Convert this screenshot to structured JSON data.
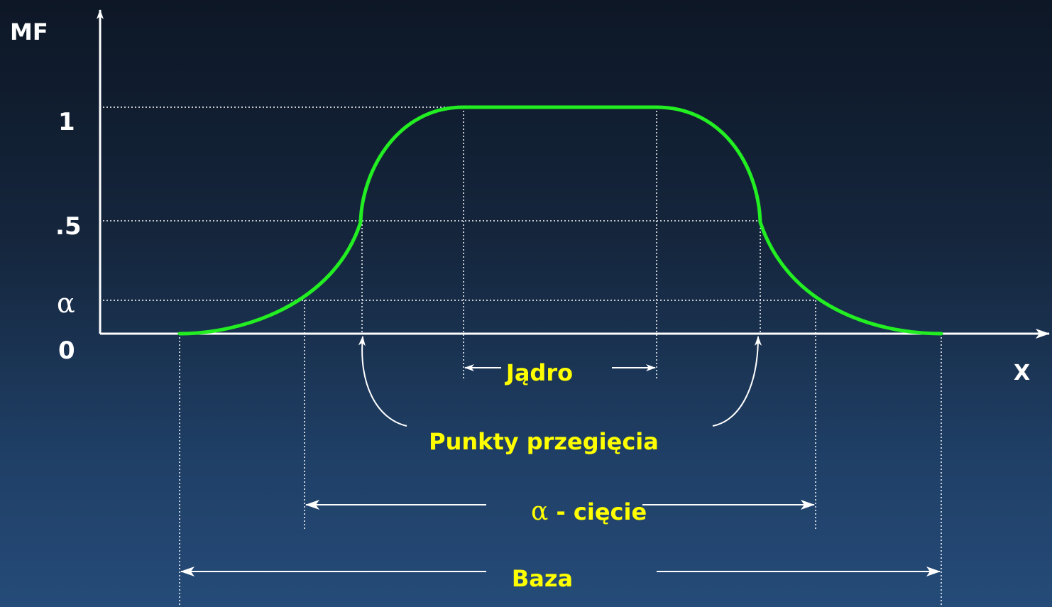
{
  "axes": {
    "y_label": "MF",
    "x_label": "X",
    "y_ticks": [
      "1",
      ".5",
      "α",
      "0"
    ]
  },
  "annotations": {
    "core": "Jądro",
    "crossover_points": "Punkty przegięcia",
    "alpha_cut_symbol": "α",
    "alpha_cut_text": " - cięcie",
    "support": "Baza"
  },
  "colors": {
    "curve": "#22ee22",
    "labels": "#ffff00",
    "axes": "#ffffff",
    "background_top": "#0d1726",
    "background_bottom": "#254b78"
  }
}
